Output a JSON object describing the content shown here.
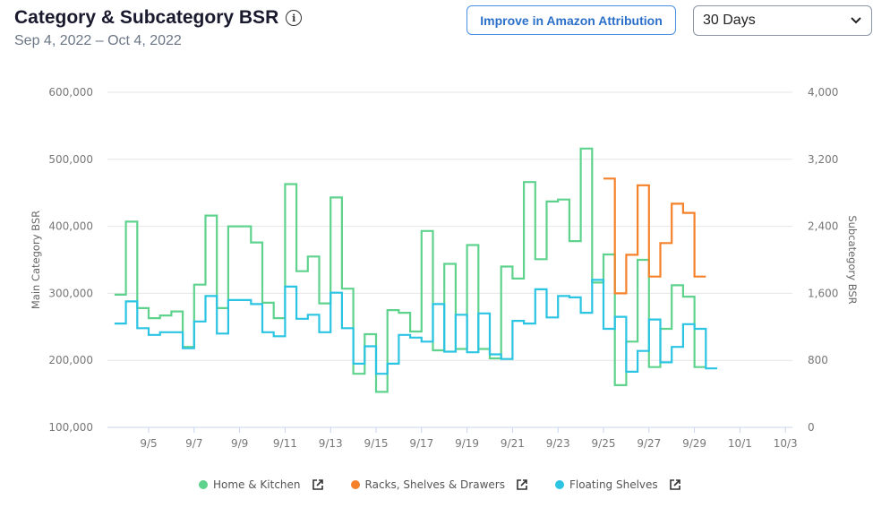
{
  "header": {
    "title": "Category & Subcategory BSR",
    "date_range": "Sep 4, 2022 – Oct 4, 2022",
    "improve_button": "Improve in Amazon Attribution",
    "period_select": "30 Days"
  },
  "colors": {
    "home_kitchen": "#5fd38d",
    "racks": "#f5822a",
    "floating": "#2bc4e3",
    "grid": "#e6e6e6",
    "axis": "#c8d6ea"
  },
  "chart_data": {
    "type": "line",
    "step": true,
    "title": "Category & Subcategory BSR",
    "ylabel": "Main Category BSR",
    "y2label": "Subcategory BSR",
    "ylim": [
      100000,
      600000
    ],
    "y2lim": [
      0,
      4000
    ],
    "yticks": [
      "600,000",
      "500,000",
      "400,000",
      "300,000",
      "200,000",
      "100,000"
    ],
    "yticks_values": [
      600000,
      500000,
      400000,
      300000,
      200000,
      100000
    ],
    "y2ticks": [
      "4,000",
      "3,200",
      "2,400",
      "1,600",
      "800",
      "0"
    ],
    "y2ticks_values": [
      4000,
      3200,
      2400,
      1600,
      800,
      0
    ],
    "xticks": [
      "9/5",
      "9/7",
      "9/9",
      "9/11",
      "9/13",
      "9/15",
      "9/17",
      "9/19",
      "9/21",
      "9/23",
      "9/25",
      "9/27",
      "9/29",
      "10/1",
      "10/3"
    ],
    "xticks_day": [
      5,
      7,
      9,
      11,
      13,
      15,
      17,
      19,
      21,
      23,
      25,
      27,
      29,
      31,
      33
    ],
    "x_start_day": 3.5,
    "x_step_days": 0.5,
    "grid": true,
    "legend_position": "bottom-center",
    "series": [
      {
        "name": "Home & Kitchen",
        "axis": "left",
        "color": "#5fd38d",
        "values": [
          298000,
          407000,
          278000,
          263000,
          267000,
          273000,
          220000,
          313000,
          416000,
          278000,
          400000,
          400000,
          376000,
          286000,
          263000,
          463000,
          333000,
          355000,
          285000,
          443000,
          307000,
          180000,
          239000,
          153000,
          275000,
          271000,
          243000,
          393000,
          215000,
          344000,
          217000,
          372000,
          217000,
          203000,
          340000,
          322000,
          466000,
          351000,
          437000,
          440000,
          378000,
          516000,
          316000,
          358000,
          163000,
          228000,
          350000,
          190000,
          247000,
          312000,
          295000,
          190000
        ]
      },
      {
        "name": "Racks, Shelves & Drawers",
        "axis": "right",
        "color": "#f5822a",
        "start_index": 43,
        "values": [
          2970,
          1600,
          2060,
          2890,
          1800,
          2200,
          2670,
          2560,
          1800
        ]
      },
      {
        "name": "Floating Shelves",
        "axis": "left",
        "color": "#2bc4e3",
        "values": [
          255000,
          288000,
          248000,
          238000,
          242000,
          242000,
          218000,
          258000,
          296000,
          240000,
          290000,
          290000,
          284000,
          242000,
          236000,
          310000,
          262000,
          268000,
          242000,
          301000,
          248000,
          195000,
          221000,
          180000,
          195000,
          238000,
          234000,
          228000,
          284000,
          213000,
          268000,
          212000,
          270000,
          209000,
          202000,
          259000,
          255000,
          306000,
          264000,
          296000,
          294000,
          271000,
          320000,
          247000,
          265000,
          183000,
          214000,
          261000,
          197000,
          220000,
          254000,
          247000,
          188000
        ]
      }
    ]
  },
  "legend": [
    {
      "label": "Home & Kitchen",
      "color": "#5fd38d",
      "link_icon": "external-link-icon"
    },
    {
      "label": "Racks, Shelves & Drawers",
      "color": "#f5822a",
      "link_icon": "external-link-icon"
    },
    {
      "label": "Floating Shelves",
      "color": "#2bc4e3",
      "link_icon": "external-link-icon"
    }
  ]
}
